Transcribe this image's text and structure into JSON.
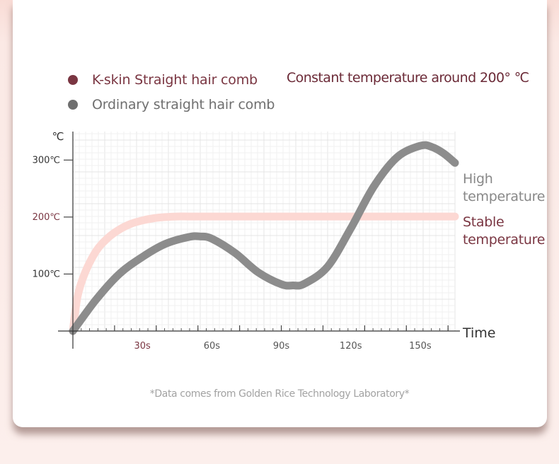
{
  "legend": [
    {
      "label": "K-skin Straight hair comb",
      "color": "#7a3642",
      "text_color": "#7a3642"
    },
    {
      "label": "Ordinary straight hair comb",
      "color": "#6f6f6f",
      "text_color": "#6f6f6f"
    }
  ],
  "note": "Constant temperature around 200°  ℃",
  "footnote": "*Data comes from Golden Rice Technology Laboratory*",
  "chart_data": {
    "type": "line",
    "y_unit": "℃",
    "xlabel": "Time",
    "x_ticks": [
      {
        "value": 30,
        "label": "30s",
        "color": "#7a3642"
      },
      {
        "value": 60,
        "label": "60s",
        "color": "#555555"
      },
      {
        "value": 90,
        "label": "90s",
        "color": "#555555"
      },
      {
        "value": 120,
        "label": "120s",
        "color": "#555555"
      },
      {
        "value": 150,
        "label": "150s",
        "color": "#555555"
      }
    ],
    "y_ticks": [
      {
        "value": 100,
        "label": "100℃",
        "color": "#333333"
      },
      {
        "value": 200,
        "label": "200℃",
        "color": "#7a3642"
      },
      {
        "value": 300,
        "label": "300℃",
        "color": "#333333"
      }
    ],
    "xlim": [
      0,
      165
    ],
    "ylim": [
      0,
      350
    ],
    "grid": true,
    "series": [
      {
        "name": "K-skin Straight hair comb",
        "color": "#fcd8d3",
        "end_label": [
          "Stable",
          "temperature"
        ],
        "end_label_color": "#7a3642",
        "x": [
          0,
          2,
          5,
          10,
          15,
          20,
          25,
          30,
          35,
          40,
          45,
          50,
          60,
          80,
          100,
          120,
          140,
          165
        ],
        "y": [
          0,
          60,
          100,
          140,
          163,
          178,
          188,
          194,
          198,
          200,
          201,
          201,
          201,
          201,
          201,
          201,
          201,
          201
        ]
      },
      {
        "name": "Ordinary straight hair comb",
        "color": "#8c8c8c",
        "end_label": [
          "High",
          "temperature"
        ],
        "end_label_color": "#888888",
        "x": [
          0,
          10,
          20,
          30,
          40,
          50,
          55,
          60,
          70,
          80,
          90,
          95,
          100,
          110,
          120,
          130,
          140,
          150,
          155,
          160,
          165
        ],
        "y": [
          0,
          55,
          100,
          130,
          153,
          165,
          166,
          162,
          137,
          103,
          82,
          80,
          83,
          113,
          180,
          254,
          305,
          325,
          323,
          312,
          295
        ]
      }
    ]
  }
}
